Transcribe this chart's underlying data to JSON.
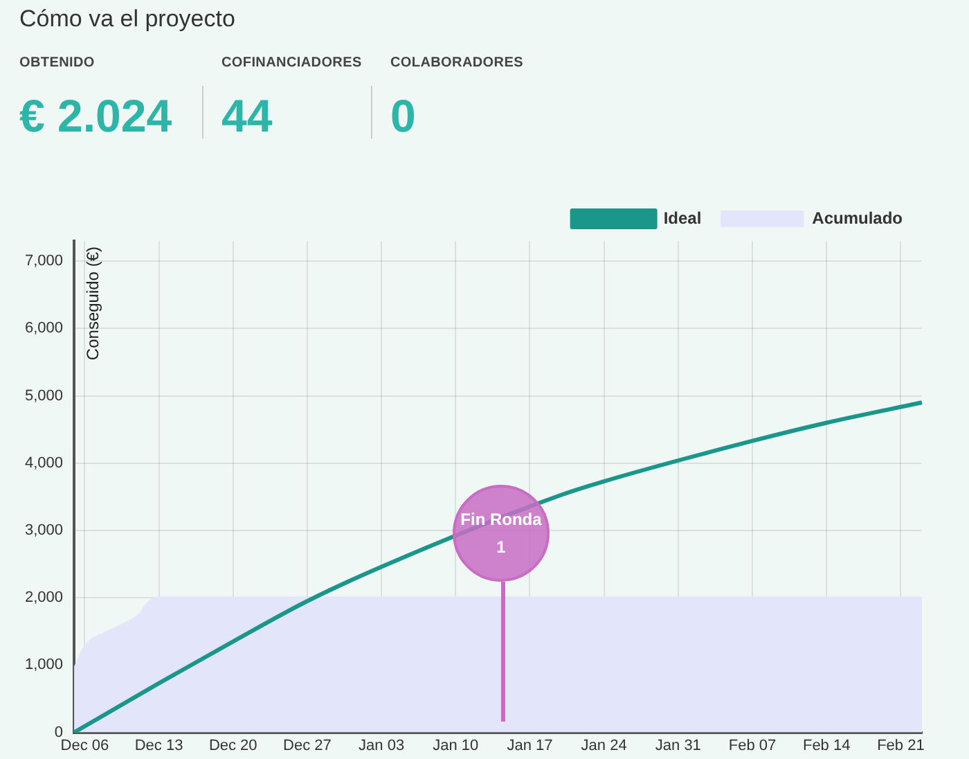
{
  "chart_data": {
    "type": "line",
    "title": "Cómo va el proyecto",
    "annotations": [
      "OBTENIDO",
      "€ 2.024",
      "COFINANCIADORES",
      "44",
      "COLABORADORES",
      "0",
      "Fin Ronda 1"
    ],
    "ylabel": "Conseguido (€)",
    "categories": [
      null,
      "Dec 06",
      null,
      null,
      null,
      null,
      null,
      null,
      "Dec 13",
      null,
      null,
      null,
      null,
      null,
      null,
      "Dec 20",
      null,
      null,
      null,
      null,
      null,
      null,
      "Dec 27",
      null,
      null,
      null,
      null,
      null,
      null,
      "Jan 03",
      null,
      null,
      null,
      null,
      null,
      null,
      "Jan 10",
      null,
      null,
      null,
      null,
      null,
      null,
      "Jan 17",
      null,
      null,
      null,
      null,
      null,
      null,
      "Jan 24",
      null,
      null,
      null,
      null,
      null,
      null,
      "Jan 31",
      null,
      null,
      null,
      null,
      null,
      null,
      "Feb 07",
      null,
      null,
      null,
      null,
      null,
      null,
      "Feb 14",
      null,
      null,
      null,
      null,
      null,
      null,
      "Feb 21",
      null,
      null
    ],
    "series": [
      {
        "name": "Acumulado",
        "type": "area",
        "color": "#e3e5fa",
        "values": [
          980,
          1300,
          null,
          1500,
          null,
          1650,
          1750,
          1950,
          2020,
          null,
          null,
          null,
          null,
          null,
          null,
          null,
          null,
          null,
          null,
          null,
          null,
          null,
          null,
          null,
          null,
          null,
          null,
          null,
          null,
          null,
          null,
          null,
          null,
          null,
          null,
          null,
          null,
          null,
          null,
          null,
          null,
          null,
          null,
          null,
          null,
          null,
          null,
          null,
          null,
          null,
          null,
          null,
          null,
          null,
          null,
          null,
          null,
          null,
          null,
          null,
          null,
          null,
          null,
          null,
          null,
          null,
          null,
          null,
          null,
          null,
          null,
          null,
          null,
          null,
          null,
          null,
          null,
          null,
          null,
          null,
          2020
        ]
      },
      {
        "name": "Ideal",
        "color": "#1a968a",
        "values": [
          0,
          null,
          null,
          null,
          null,
          null,
          null,
          null,
          730,
          null,
          null,
          null,
          null,
          null,
          null,
          1350,
          null,
          null,
          null,
          null,
          null,
          null,
          1950,
          null,
          null,
          null,
          null,
          null,
          null,
          2460,
          null,
          null,
          null,
          null,
          null,
          null,
          null,
          null,
          null,
          null,
          null,
          null,
          null,
          null,
          null,
          null,
          3530,
          null,
          null,
          null,
          3730,
          null,
          null,
          null,
          null,
          null,
          null,
          null,
          null,
          null,
          null,
          null,
          null,
          null,
          4330,
          null,
          null,
          null,
          null,
          null,
          null,
          4600,
          null,
          null,
          null,
          null,
          null,
          null,
          null,
          null,
          4900
        ]
      }
    ],
    "ylim": [
      0,
      7300
    ],
    "yticks": [
      {
        "value": 0,
        "label": "0"
      },
      {
        "value": 1000,
        "label": "1,000"
      },
      {
        "value": 2000,
        "label": "2,000"
      },
      {
        "value": 3000,
        "label": "3,000"
      },
      {
        "value": 4000,
        "label": "4,000"
      },
      {
        "value": 5000,
        "label": "5,000"
      },
      {
        "value": 6000,
        "label": "6,000"
      },
      {
        "value": 7000,
        "label": "7,000"
      }
    ],
    "grid": true,
    "legend": "top right"
  }
}
